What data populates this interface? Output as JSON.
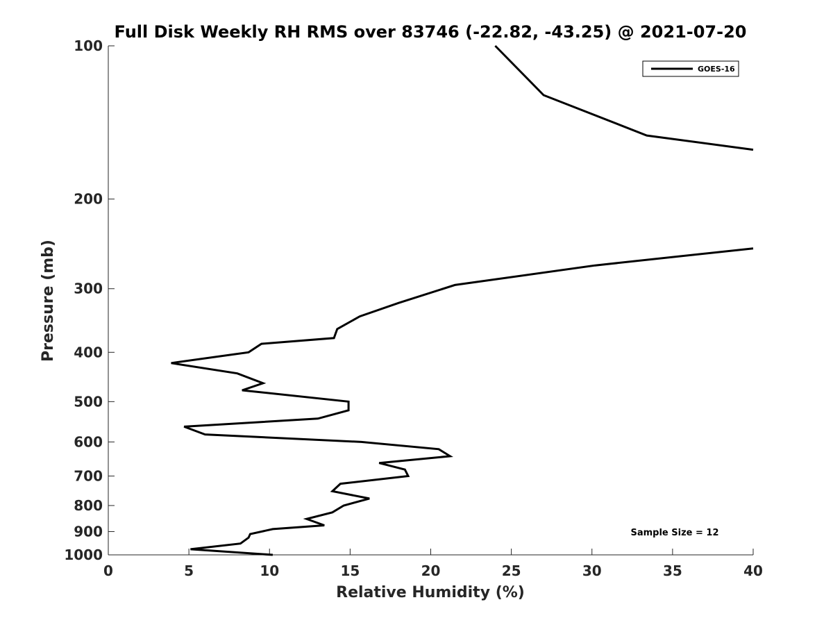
{
  "chart_data": {
    "type": "line",
    "title": "Full Disk Weekly RH RMS over 83746 (-22.82, -43.25) @ 2021-07-20",
    "xlabel": "Relative Humidity (%)",
    "ylabel": "Pressure (mb)",
    "xlim": [
      0,
      40
    ],
    "ylim": [
      100,
      1000
    ],
    "y_scale": "log",
    "y_direction": "reversed",
    "grid": false,
    "legend_position": "top-right",
    "x_ticks": [
      0,
      5,
      10,
      15,
      20,
      25,
      30,
      35,
      40
    ],
    "y_ticks": [
      100,
      200,
      300,
      400,
      500,
      600,
      700,
      800,
      900,
      1000
    ],
    "annotation": "Sample Size = 12",
    "series": [
      {
        "name": "GOES-16",
        "color": "#000000",
        "segments": [
          [
            [
              24.0,
              100
            ],
            [
              27.0,
              125
            ],
            [
              33.4,
              150
            ],
            [
              40.0,
              160
            ]
          ],
          [
            [
              40.0,
              250
            ],
            [
              30.2,
              270
            ],
            [
              21.5,
              295
            ],
            [
              18.0,
              320
            ],
            [
              15.6,
              340
            ],
            [
              14.2,
              360
            ],
            [
              14.0,
              375
            ],
            [
              9.5,
              385
            ],
            [
              8.7,
              400
            ],
            [
              3.9,
              420
            ],
            [
              8.0,
              440
            ],
            [
              9.6,
              460
            ],
            [
              8.3,
              475
            ],
            [
              14.9,
              500
            ],
            [
              14.9,
              520
            ],
            [
              13.0,
              540
            ],
            [
              4.7,
              560
            ],
            [
              6.0,
              580
            ],
            [
              15.7,
              600
            ],
            [
              20.5,
              620
            ],
            [
              21.2,
              640
            ],
            [
              16.8,
              660
            ],
            [
              18.4,
              680
            ],
            [
              18.6,
              700
            ],
            [
              14.4,
              725
            ],
            [
              13.9,
              750
            ],
            [
              16.2,
              775
            ],
            [
              14.6,
              800
            ],
            [
              13.9,
              825
            ],
            [
              12.3,
              850
            ],
            [
              13.4,
              875
            ],
            [
              10.2,
              890
            ],
            [
              8.8,
              910
            ],
            [
              8.7,
              925
            ],
            [
              8.2,
              950
            ],
            [
              5.1,
              975
            ],
            [
              10.2,
              1000
            ]
          ]
        ]
      }
    ]
  }
}
